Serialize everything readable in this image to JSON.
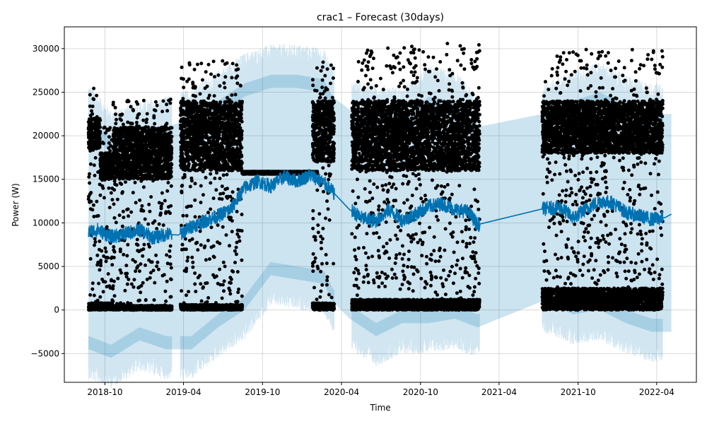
{
  "chart_data": {
    "type": "line",
    "title": "crac1 – Forecast (30days)",
    "xlabel": "Time",
    "ylabel": "Power (W)",
    "xlim": [
      "2018-06-29",
      "2022-07-02"
    ],
    "ylim": [
      -8300,
      32500
    ],
    "grid": true,
    "x_ticks": [
      "2018-10",
      "2019-04",
      "2019-10",
      "2020-04",
      "2020-10",
      "2021-04",
      "2021-10",
      "2022-04"
    ],
    "y_ticks": [
      -5000,
      0,
      5000,
      10000,
      15000,
      20000,
      25000,
      30000
    ],
    "y_tick_labels": [
      "−5000",
      "0",
      "5000",
      "10000",
      "15000",
      "20000",
      "25000",
      "30000"
    ],
    "colors": {
      "forecast_line": "#0072B2",
      "uncertainty_band": "#0072B2",
      "observations": "#000000",
      "grid": "#d9d9d9"
    },
    "series": [
      {
        "role": "forecast-mean",
        "kind": "line",
        "x": [
          "2018-08-24",
          "2018-09-15",
          "2018-10-15",
          "2018-11-15",
          "2018-12-20",
          "2019-01-20",
          "2019-02-20",
          "2019-03-20",
          "2019-04-20",
          "2019-05-20",
          "2019-06-20",
          "2019-07-20",
          "2019-08-20",
          "2019-09-20",
          "2019-10-20",
          "2019-11-20",
          "2019-12-20",
          "2020-01-20",
          "2020-02-20",
          "2020-03-11",
          "2020-04-20",
          "2020-05-20",
          "2020-06-20",
          "2020-07-20",
          "2020-08-20",
          "2020-09-20",
          "2020-10-20",
          "2020-11-20",
          "2020-12-20",
          "2021-01-20",
          "2021-02-10",
          "2021-07-10",
          "2021-08-20",
          "2021-09-20",
          "2021-10-20",
          "2021-11-20",
          "2021-12-20",
          "2022-01-20",
          "2022-02-20",
          "2022-03-20",
          "2022-04-20",
          "2022-05-05"
        ],
        "y": [
          9000,
          9200,
          8400,
          8700,
          9200,
          8300,
          8700,
          8600,
          9600,
          10200,
          10800,
          11600,
          14000,
          14800,
          14200,
          15300,
          14800,
          15500,
          14600,
          13600,
          11500,
          10500,
          10200,
          11500,
          10300,
          11000,
          11900,
          12200,
          11500,
          11300,
          9800,
          11600,
          11800,
          10600,
          11600,
          12500,
          12300,
          11200,
          10800,
          10400,
          10600,
          11000
        ]
      },
      {
        "role": "forecast-upper",
        "kind": "band-upper",
        "x": [
          "2018-08-24",
          "2018-10-15",
          "2018-12-20",
          "2019-02-20",
          "2019-04-20",
          "2019-06-20",
          "2019-08-20",
          "2019-10-20",
          "2019-12-20",
          "2020-02-20",
          "2020-03-11",
          "2020-04-20",
          "2020-06-20",
          "2020-08-20",
          "2020-10-20",
          "2020-12-20",
          "2021-02-10",
          "2021-07-10",
          "2021-09-20",
          "2021-11-20",
          "2022-01-20",
          "2022-03-20",
          "2022-05-05"
        ],
        "y": [
          22500,
          19500,
          20500,
          21000,
          22000,
          24000,
          26000,
          27000,
          27000,
          26500,
          24500,
          23000,
          22500,
          22000,
          24500,
          24000,
          21000,
          22500,
          24000,
          25000,
          23500,
          22500,
          22500
        ]
      },
      {
        "role": "forecast-lower",
        "kind": "band-lower",
        "x": [
          "2018-08-24",
          "2018-10-15",
          "2018-12-20",
          "2019-02-20",
          "2019-04-20",
          "2019-06-20",
          "2019-08-20",
          "2019-10-20",
          "2019-12-20",
          "2020-02-20",
          "2020-03-11",
          "2020-04-20",
          "2020-06-20",
          "2020-08-20",
          "2020-10-20",
          "2020-12-20",
          "2021-02-10",
          "2021-07-10",
          "2021-09-20",
          "2021-11-20",
          "2022-01-20",
          "2022-03-20",
          "2022-05-05"
        ],
        "y": [
          -4500,
          -5500,
          -3500,
          -4500,
          -4500,
          -2000,
          0,
          4000,
          3500,
          3000,
          1000,
          -1000,
          -3000,
          -1500,
          -1500,
          -1000,
          -2000,
          1000,
          -500,
          0,
          -1500,
          -2500,
          -2500
        ]
      },
      {
        "role": "observations",
        "kind": "scatter-clusters",
        "segments": [
          {
            "start": "2018-08-24",
            "end": "2018-09-20",
            "dense_band": [
              18500,
              22000
            ],
            "low_band": [
              0,
              800
            ],
            "max": 25700
          },
          {
            "start": "2018-09-20",
            "end": "2018-10-20",
            "dense_band": [
              15000,
              18000
            ],
            "low_band": [
              0,
              800
            ],
            "max": 21000
          },
          {
            "start": "2018-10-20",
            "end": "2019-03-05",
            "dense_band": [
              15000,
              21000
            ],
            "low_band": [
              0,
              500
            ],
            "max": 24200
          },
          {
            "start": "2019-03-25",
            "end": "2019-08-15",
            "dense_band": [
              16000,
              24000
            ],
            "low_band": [
              0,
              600
            ],
            "max": 28600
          },
          {
            "start": "2019-08-15",
            "end": "2020-02-05",
            "dense_band": [
              15600,
              15900
            ],
            "low_band": [
              0,
              0
            ],
            "max": 15900
          },
          {
            "start": "2020-01-25",
            "end": "2020-03-15",
            "dense_band": [
              17000,
              24000
            ],
            "low_band": [
              0,
              800
            ],
            "max": 29100
          },
          {
            "start": "2020-04-25",
            "end": "2021-02-15",
            "dense_band": [
              16000,
              24000
            ],
            "low_band": [
              0,
              1200
            ],
            "max": 30600
          },
          {
            "start": "2021-07-10",
            "end": "2022-04-15",
            "dense_band": [
              18000,
              24000
            ],
            "low_band": [
              0,
              2500
            ],
            "max": 29900
          }
        ]
      }
    ]
  }
}
